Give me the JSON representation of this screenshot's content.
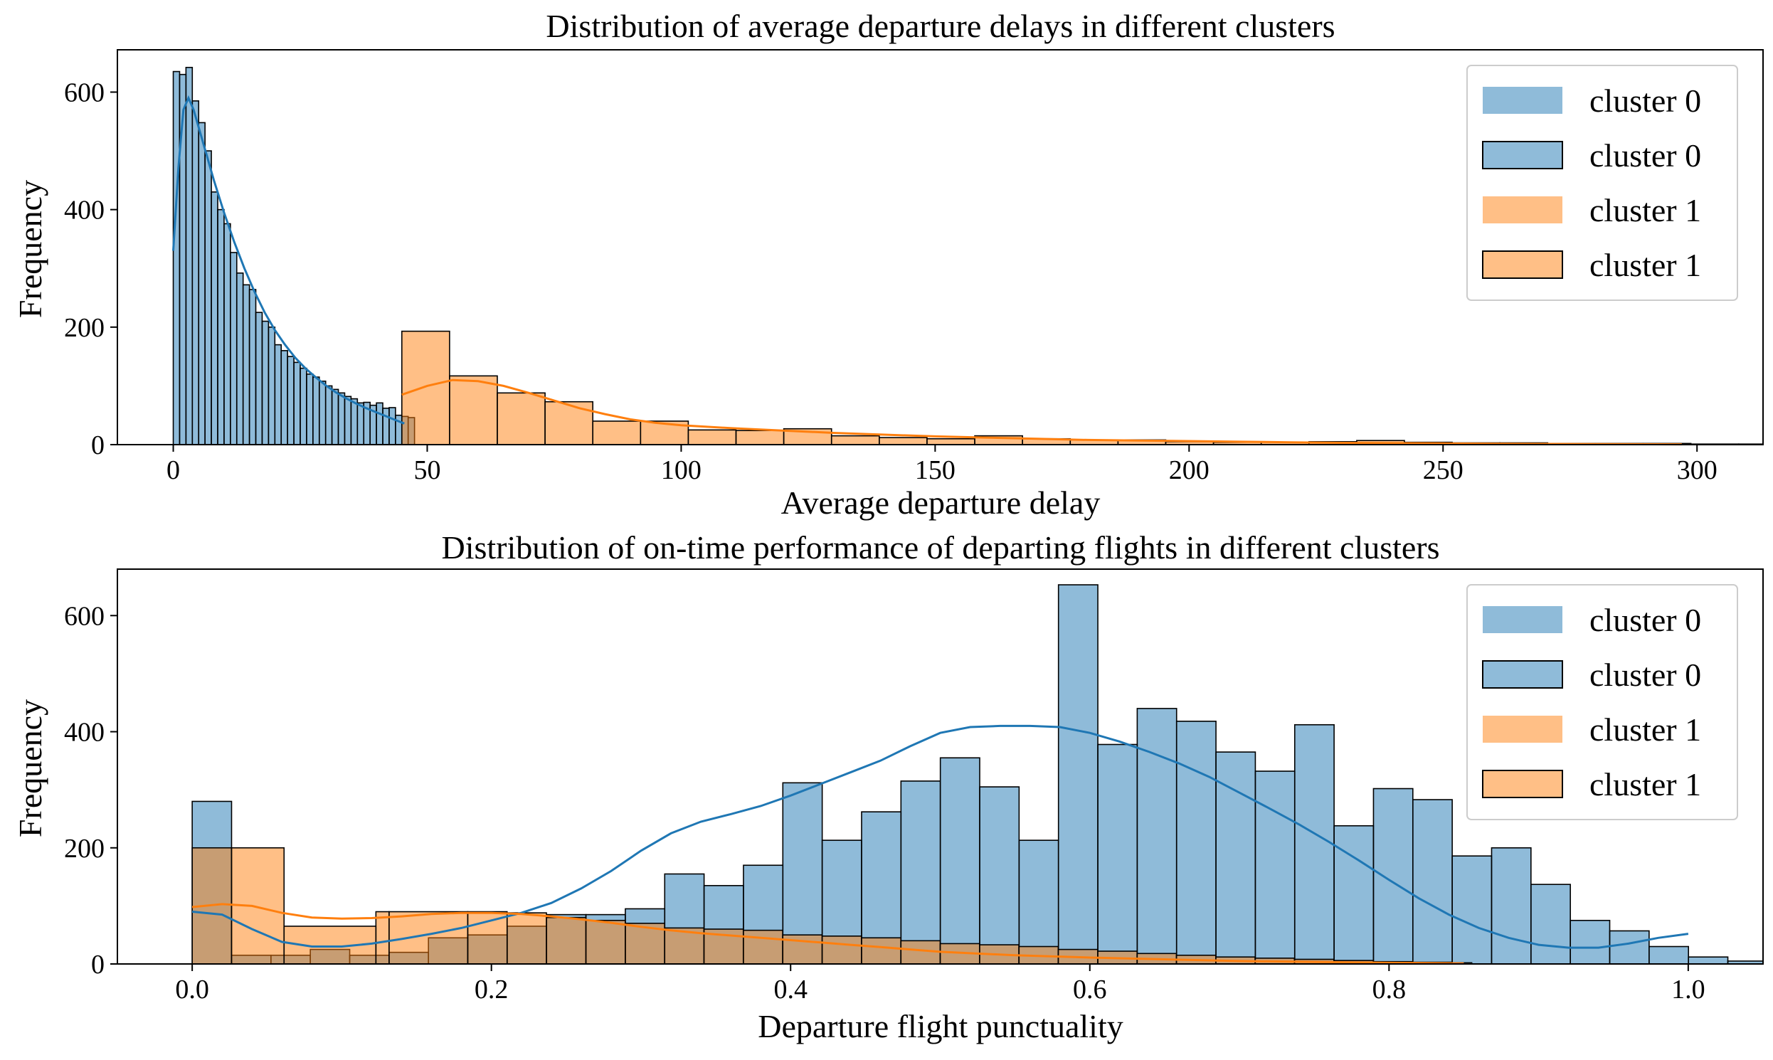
{
  "colors": {
    "cluster0_fill": "#1f77b4",
    "cluster1_fill": "#ff7f0e",
    "edge": "#000000",
    "legend_border": "#cccccc"
  },
  "chart_data": [
    {
      "type": "bar",
      "subtype": "histogram_with_kde",
      "title": "Distribution of average departure delays in different clusters",
      "xlabel": "Average departure delay",
      "ylabel": "Frequency",
      "xlim": [
        -11,
        313
      ],
      "ylim": [
        0,
        672
      ],
      "xticks": [
        0,
        50,
        100,
        150,
        200,
        250,
        300
      ],
      "xtick_labels": [
        "0",
        "50",
        "100",
        "150",
        "200",
        "250",
        "300"
      ],
      "yticks": [
        0,
        200,
        400,
        600
      ],
      "ytick_labels": [
        "0",
        "200",
        "400",
        "600"
      ],
      "legend": {
        "position": "upper right",
        "entries": [
          {
            "label": "cluster 0",
            "series": 0,
            "edge": false
          },
          {
            "label": "cluster 0",
            "series": 0,
            "edge": true
          },
          {
            "label": "cluster 1",
            "series": 1,
            "edge": false
          },
          {
            "label": "cluster 1",
            "series": 1,
            "edge": true
          }
        ]
      },
      "series": [
        {
          "name": "cluster 0",
          "bin_start": 0,
          "bin_width": 1.25,
          "values": [
            635,
            630,
            642,
            585,
            548,
            500,
            430,
            400,
            376,
            327,
            292,
            272,
            264,
            225,
            210,
            200,
            170,
            160,
            150,
            140,
            130,
            120,
            115,
            108,
            100,
            94,
            88,
            82,
            78,
            71,
            72,
            67,
            71,
            62,
            63,
            50,
            48,
            46
          ],
          "kde": [
            [
              0,
              330
            ],
            [
              1,
              470
            ],
            [
              2,
              570
            ],
            [
              3,
              590
            ],
            [
              4,
              570
            ],
            [
              6,
              510
            ],
            [
              8,
              450
            ],
            [
              10,
              395
            ],
            [
              12,
              345
            ],
            [
              14,
              300
            ],
            [
              16,
              260
            ],
            [
              18,
              225
            ],
            [
              20,
              195
            ],
            [
              22,
              170
            ],
            [
              24,
              148
            ],
            [
              26,
              130
            ],
            [
              28,
              115
            ],
            [
              30,
              101
            ],
            [
              32,
              89
            ],
            [
              34,
              79
            ],
            [
              36,
              70
            ],
            [
              38,
              62
            ],
            [
              40,
              55
            ],
            [
              42,
              48
            ],
            [
              44,
              41
            ],
            [
              45.5,
              36
            ]
          ]
        },
        {
          "name": "cluster 1",
          "bin_start": 45,
          "bin_width": 9.4,
          "values": [
            193,
            117,
            88,
            73,
            40,
            40,
            25,
            24,
            27,
            15,
            12,
            10,
            15,
            10,
            8,
            8,
            5,
            4,
            4,
            5,
            7,
            4,
            3,
            3,
            2,
            2,
            2,
            1,
            1,
            1
          ],
          "kde": [
            [
              45,
              85
            ],
            [
              50,
              100
            ],
            [
              55,
              110
            ],
            [
              60,
              108
            ],
            [
              65,
              100
            ],
            [
              70,
              88
            ],
            [
              75,
              75
            ],
            [
              80,
              62
            ],
            [
              85,
              52
            ],
            [
              90,
              43
            ],
            [
              95,
              37
            ],
            [
              100,
              33
            ],
            [
              110,
              28
            ],
            [
              120,
              24
            ],
            [
              130,
              20
            ],
            [
              140,
              17
            ],
            [
              150,
              14
            ],
            [
              160,
              12
            ],
            [
              170,
              10
            ],
            [
              180,
              8
            ],
            [
              190,
              7
            ],
            [
              200,
              6
            ],
            [
              210,
              5
            ],
            [
              220,
              4
            ],
            [
              230,
              3
            ],
            [
              240,
              2.5
            ],
            [
              250,
              2
            ],
            [
              260,
              1.5
            ],
            [
              270,
              1.2
            ],
            [
              280,
              1
            ],
            [
              297,
              0.5
            ]
          ]
        }
      ]
    },
    {
      "type": "bar",
      "subtype": "histogram_with_kde",
      "title": "Distribution of on-time performance of departing flights in different clusters",
      "xlabel": "Departure flight punctuality",
      "ylabel": "Frequency",
      "xlim": [
        -0.05,
        1.05
      ],
      "ylim": [
        0,
        680
      ],
      "xticks": [
        0.0,
        0.2,
        0.4,
        0.6,
        0.8,
        1.0
      ],
      "xtick_labels": [
        "0.0",
        "0.2",
        "0.4",
        "0.6",
        "0.8",
        "1.0"
      ],
      "yticks": [
        0,
        200,
        400,
        600
      ],
      "ytick_labels": [
        "0",
        "200",
        "400",
        "600"
      ],
      "legend": {
        "position": "upper right",
        "entries": [
          {
            "label": "cluster 0",
            "series": 0,
            "edge": false
          },
          {
            "label": "cluster 0",
            "series": 0,
            "edge": true
          },
          {
            "label": "cluster 1",
            "series": 1,
            "edge": false
          },
          {
            "label": "cluster 1",
            "series": 1,
            "edge": true
          }
        ]
      },
      "series": [
        {
          "name": "cluster 0",
          "bin_start": 0,
          "bin_width": 0.02632,
          "values": [
            280,
            15,
            15,
            25,
            15,
            20,
            45,
            50,
            65,
            85,
            85,
            95,
            155,
            135,
            170,
            312,
            213,
            262,
            315,
            355,
            305,
            213,
            653,
            378,
            440,
            418,
            365,
            332,
            412,
            238,
            302,
            283,
            186,
            200,
            137,
            75,
            57,
            30,
            12,
            5,
            0,
            0,
            0,
            0,
            0,
            0,
            0,
            0,
            0,
            0
          ],
          "values_note": "bins across [0, 1.0]",
          "kde": [
            [
              0.0,
              90
            ],
            [
              0.02,
              85
            ],
            [
              0.04,
              60
            ],
            [
              0.06,
              38
            ],
            [
              0.08,
              30
            ],
            [
              0.1,
              30
            ],
            [
              0.12,
              35
            ],
            [
              0.14,
              43
            ],
            [
              0.16,
              52
            ],
            [
              0.18,
              62
            ],
            [
              0.2,
              75
            ],
            [
              0.22,
              88
            ],
            [
              0.24,
              105
            ],
            [
              0.26,
              130
            ],
            [
              0.28,
              160
            ],
            [
              0.3,
              195
            ],
            [
              0.32,
              225
            ],
            [
              0.34,
              245
            ],
            [
              0.36,
              258
            ],
            [
              0.38,
              272
            ],
            [
              0.4,
              290
            ],
            [
              0.42,
              310
            ],
            [
              0.44,
              330
            ],
            [
              0.46,
              350
            ],
            [
              0.48,
              375
            ],
            [
              0.5,
              398
            ],
            [
              0.52,
              408
            ],
            [
              0.54,
              410
            ],
            [
              0.56,
              410
            ],
            [
              0.58,
              408
            ],
            [
              0.6,
              398
            ],
            [
              0.62,
              383
            ],
            [
              0.64,
              365
            ],
            [
              0.66,
              345
            ],
            [
              0.68,
              322
            ],
            [
              0.7,
              295
            ],
            [
              0.72,
              268
            ],
            [
              0.74,
              240
            ],
            [
              0.76,
              210
            ],
            [
              0.78,
              178
            ],
            [
              0.8,
              145
            ],
            [
              0.82,
              113
            ],
            [
              0.84,
              85
            ],
            [
              0.86,
              62
            ],
            [
              0.88,
              45
            ],
            [
              0.9,
              33
            ],
            [
              0.92,
              28
            ],
            [
              0.94,
              28
            ],
            [
              0.96,
              35
            ],
            [
              0.98,
              45
            ],
            [
              1.0,
              52
            ]
          ]
        },
        {
          "name": "cluster 1",
          "bin_edges": [
            0.0,
            0.0263,
            0.0614,
            0.1228,
            0.1316,
            0.1842,
            0.2105,
            0.2368,
            0.2632,
            0.2895,
            0.3158,
            0.3421,
            0.3684,
            0.3947,
            0.4211,
            0.4474,
            0.4737,
            0.5,
            0.5263,
            0.5526,
            0.5789,
            0.6053,
            0.6316,
            0.6579,
            0.6842,
            0.7105,
            0.7368,
            0.7632,
            0.7895,
            0.8158,
            0.8421,
            0.8553
          ],
          "values": [
            200,
            200,
            65,
            90,
            90,
            90,
            88,
            80,
            75,
            70,
            62,
            60,
            58,
            50,
            48,
            45,
            40,
            35,
            33,
            30,
            25,
            22,
            18,
            15,
            12,
            10,
            8,
            6,
            4,
            3,
            2
          ],
          "kde": [
            [
              0.0,
              98
            ],
            [
              0.02,
              103
            ],
            [
              0.04,
              100
            ],
            [
              0.06,
              88
            ],
            [
              0.08,
              80
            ],
            [
              0.1,
              78
            ],
            [
              0.12,
              79
            ],
            [
              0.14,
              82
            ],
            [
              0.16,
              86
            ],
            [
              0.18,
              88
            ],
            [
              0.2,
              88
            ],
            [
              0.22,
              86
            ],
            [
              0.24,
              82
            ],
            [
              0.26,
              77
            ],
            [
              0.28,
              71
            ],
            [
              0.3,
              64
            ],
            [
              0.32,
              58
            ],
            [
              0.34,
              53
            ],
            [
              0.36,
              49
            ],
            [
              0.38,
              45
            ],
            [
              0.4,
              41
            ],
            [
              0.42,
              37
            ],
            [
              0.44,
              33
            ],
            [
              0.46,
              29
            ],
            [
              0.48,
              25
            ],
            [
              0.5,
              21
            ],
            [
              0.55,
              15
            ],
            [
              0.6,
              11
            ],
            [
              0.65,
              8
            ],
            [
              0.7,
              5
            ],
            [
              0.75,
              3.5
            ],
            [
              0.8,
              2
            ],
            [
              0.85,
              1
            ]
          ]
        }
      ]
    }
  ]
}
